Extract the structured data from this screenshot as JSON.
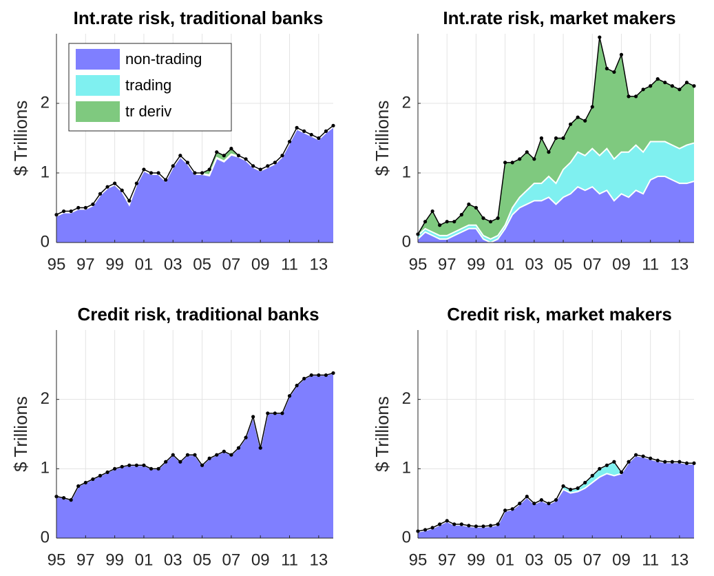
{
  "chart_data": [
    {
      "type": "area",
      "title": "Int.rate risk, traditional banks",
      "ylabel": "$ Trillions",
      "legend": "upper left",
      "grid": true,
      "xlim": [
        1995,
        2014
      ],
      "ylim": [
        0,
        3
      ],
      "yticks": [
        0,
        1,
        2
      ],
      "xticks": [
        {
          "value": 1995,
          "label": "95"
        },
        {
          "value": 1997,
          "label": "97"
        },
        {
          "value": 1999,
          "label": "99"
        },
        {
          "value": 2001,
          "label": "01"
        },
        {
          "value": 2003,
          "label": "03"
        },
        {
          "value": 2005,
          "label": "05"
        },
        {
          "value": 2007,
          "label": "07"
        },
        {
          "value": 2009,
          "label": "09"
        },
        {
          "value": 2011,
          "label": "11"
        },
        {
          "value": 2013,
          "label": "13"
        }
      ],
      "x": [
        1995,
        1995.5,
        1996,
        1996.5,
        1997,
        1997.5,
        1998,
        1998.5,
        1999,
        1999.5,
        2000,
        2000.5,
        2001,
        2001.5,
        2002,
        2002.5,
        2003,
        2003.5,
        2004,
        2004.5,
        2005,
        2005.5,
        2006,
        2006.5,
        2007,
        2007.5,
        2008,
        2008.5,
        2009,
        2009.5,
        2010,
        2010.5,
        2011,
        2011.5,
        2012,
        2012.5,
        2013,
        2013.5,
        2014
      ],
      "series": [
        {
          "name": "non-trading",
          "color": "#7f7fff",
          "values": [
            0.38,
            0.43,
            0.43,
            0.48,
            0.48,
            0.53,
            0.68,
            0.78,
            0.83,
            0.73,
            0.54,
            0.83,
            1.03,
            0.98,
            0.98,
            0.88,
            1.08,
            1.23,
            1.13,
            0.98,
            0.98,
            0.96,
            1.21,
            1.16,
            1.26,
            1.23,
            1.18,
            1.08,
            1.03,
            1.08,
            1.13,
            1.23,
            1.43,
            1.63,
            1.58,
            1.53,
            1.48,
            1.58,
            1.66
          ]
        },
        {
          "name": "trading",
          "color": "#7ff0f0",
          "values": [
            0.01,
            0.01,
            0.01,
            0.01,
            0.01,
            0.01,
            0.01,
            0.01,
            0.01,
            0.01,
            0.01,
            0.01,
            0.01,
            0.01,
            0.01,
            0.01,
            0.01,
            0.01,
            0.01,
            0.01,
            0.01,
            0.01,
            0.01,
            0.01,
            0.01,
            0.01,
            0.01,
            0.01,
            0.01,
            0.01,
            0.01,
            0.01,
            0.01,
            0.01,
            0.01,
            0.01,
            0.01,
            0.01,
            0.01
          ]
        },
        {
          "name": "tr deriv",
          "color": "#7fc97f",
          "values": [
            0.01,
            0.01,
            0.01,
            0.01,
            0.01,
            0.01,
            0.01,
            0.01,
            0.01,
            0.01,
            0.05,
            0.01,
            0.01,
            0.01,
            0.01,
            0.01,
            0.01,
            0.01,
            0.01,
            0.01,
            0.01,
            0.08,
            0.08,
            0.08,
            0.08,
            0.01,
            0.01,
            0.01,
            0.01,
            0.01,
            0.01,
            0.01,
            0.01,
            0.01,
            0.01,
            0.01,
            0.01,
            0.01,
            0.01
          ]
        }
      ]
    },
    {
      "type": "area",
      "title": "Int.rate risk, market makers",
      "ylabel": "$ Trillions",
      "grid": true,
      "xlim": [
        1995,
        2014
      ],
      "ylim": [
        0,
        3
      ],
      "yticks": [
        0,
        1,
        2
      ],
      "xticks": [
        {
          "value": 1995,
          "label": "95"
        },
        {
          "value": 1997,
          "label": "97"
        },
        {
          "value": 1999,
          "label": "99"
        },
        {
          "value": 2001,
          "label": "01"
        },
        {
          "value": 2003,
          "label": "03"
        },
        {
          "value": 2005,
          "label": "05"
        },
        {
          "value": 2007,
          "label": "07"
        },
        {
          "value": 2009,
          "label": "09"
        },
        {
          "value": 2011,
          "label": "11"
        },
        {
          "value": 2013,
          "label": "13"
        }
      ],
      "x": [
        1995,
        1995.5,
        1996,
        1996.5,
        1997,
        1997.5,
        1998,
        1998.5,
        1999,
        1999.5,
        2000,
        2000.5,
        2001,
        2001.5,
        2002,
        2002.5,
        2003,
        2003.5,
        2004,
        2004.5,
        2005,
        2005.5,
        2006,
        2006.5,
        2007,
        2007.5,
        2008,
        2008.5,
        2009,
        2009.5,
        2010,
        2010.5,
        2011,
        2011.5,
        2012,
        2012.5,
        2013,
        2013.5,
        2014
      ],
      "series": [
        {
          "name": "non-trading",
          "color": "#7f7fff",
          "values": [
            0.05,
            0.15,
            0.1,
            0.05,
            0.05,
            0.1,
            0.15,
            0.2,
            0.2,
            0.05,
            0.0,
            0.05,
            0.2,
            0.4,
            0.5,
            0.55,
            0.6,
            0.6,
            0.65,
            0.55,
            0.65,
            0.7,
            0.8,
            0.75,
            0.8,
            0.7,
            0.75,
            0.6,
            0.7,
            0.65,
            0.75,
            0.7,
            0.9,
            0.95,
            0.95,
            0.9,
            0.85,
            0.85,
            0.88
          ]
        },
        {
          "name": "trading",
          "color": "#7ff0f0",
          "values": [
            0.05,
            0.05,
            0.05,
            0.05,
            0.05,
            0.05,
            0.05,
            0.05,
            0.05,
            0.05,
            0.05,
            0.05,
            0.05,
            0.1,
            0.15,
            0.2,
            0.25,
            0.25,
            0.3,
            0.3,
            0.4,
            0.45,
            0.5,
            0.5,
            0.55,
            0.55,
            0.6,
            0.6,
            0.6,
            0.65,
            0.65,
            0.6,
            0.55,
            0.5,
            0.5,
            0.5,
            0.5,
            0.55,
            0.55
          ]
        },
        {
          "name": "tr deriv",
          "color": "#7fc97f",
          "values": [
            0.02,
            0.1,
            0.3,
            0.15,
            0.2,
            0.15,
            0.2,
            0.3,
            0.25,
            0.25,
            0.25,
            0.25,
            0.9,
            0.65,
            0.55,
            0.55,
            0.35,
            0.65,
            0.35,
            0.65,
            0.45,
            0.55,
            0.5,
            0.5,
            0.6,
            1.7,
            1.15,
            1.25,
            1.4,
            0.8,
            0.7,
            0.9,
            0.8,
            0.9,
            0.85,
            0.85,
            0.85,
            0.9,
            0.82
          ]
        }
      ]
    },
    {
      "type": "area",
      "title": "Credit risk, traditional banks",
      "ylabel": "$ Trillions",
      "grid": true,
      "xlim": [
        1995,
        2014
      ],
      "ylim": [
        0,
        3
      ],
      "yticks": [
        0,
        1,
        2
      ],
      "xticks": [
        {
          "value": 1995,
          "label": "95"
        },
        {
          "value": 1997,
          "label": "97"
        },
        {
          "value": 1999,
          "label": "99"
        },
        {
          "value": 2001,
          "label": "01"
        },
        {
          "value": 2003,
          "label": "03"
        },
        {
          "value": 2005,
          "label": "05"
        },
        {
          "value": 2007,
          "label": "07"
        },
        {
          "value": 2009,
          "label": "09"
        },
        {
          "value": 2011,
          "label": "11"
        },
        {
          "value": 2013,
          "label": "13"
        }
      ],
      "x": [
        1995,
        1995.5,
        1996,
        1996.5,
        1997,
        1997.5,
        1998,
        1998.5,
        1999,
        1999.5,
        2000,
        2000.5,
        2001,
        2001.5,
        2002,
        2002.5,
        2003,
        2003.5,
        2004,
        2004.5,
        2005,
        2005.5,
        2006,
        2006.5,
        2007,
        2007.5,
        2008,
        2008.5,
        2009,
        2009.5,
        2010,
        2010.5,
        2011,
        2011.5,
        2012,
        2012.5,
        2013,
        2013.5,
        2014
      ],
      "series": [
        {
          "name": "non-trading",
          "color": "#7f7fff",
          "values": [
            0.6,
            0.58,
            0.55,
            0.75,
            0.8,
            0.85,
            0.9,
            0.95,
            1.0,
            1.03,
            1.05,
            1.05,
            1.05,
            1.0,
            1.0,
            1.1,
            1.2,
            1.1,
            1.2,
            1.2,
            1.05,
            1.15,
            1.2,
            1.25,
            1.2,
            1.3,
            1.45,
            1.75,
            1.3,
            1.8,
            1.8,
            1.8,
            2.05,
            2.2,
            2.3,
            2.35,
            2.35,
            2.35,
            2.38
          ]
        },
        {
          "name": "trading",
          "color": "#7ff0f0",
          "values": [
            0,
            0,
            0,
            0,
            0,
            0,
            0,
            0,
            0,
            0,
            0,
            0,
            0,
            0,
            0,
            0,
            0,
            0,
            0,
            0,
            0,
            0,
            0,
            0,
            0,
            0,
            0,
            0,
            0,
            0,
            0,
            0,
            0,
            0,
            0,
            0,
            0,
            0,
            0
          ]
        },
        {
          "name": "tr deriv",
          "color": "#7fc97f",
          "values": [
            0,
            0,
            0,
            0,
            0,
            0,
            0,
            0,
            0,
            0,
            0,
            0,
            0,
            0,
            0,
            0,
            0,
            0,
            0,
            0,
            0,
            0,
            0,
            0,
            0,
            0,
            0,
            0,
            0,
            0,
            0,
            0,
            0,
            0,
            0,
            0,
            0,
            0,
            0
          ]
        }
      ]
    },
    {
      "type": "area",
      "title": "Credit risk, market makers",
      "ylabel": "$ Trillions",
      "grid": true,
      "xlim": [
        1995,
        2014
      ],
      "ylim": [
        0,
        3
      ],
      "yticks": [
        0,
        1,
        2
      ],
      "xticks": [
        {
          "value": 1995,
          "label": "95"
        },
        {
          "value": 1997,
          "label": "97"
        },
        {
          "value": 1999,
          "label": "99"
        },
        {
          "value": 2001,
          "label": "01"
        },
        {
          "value": 2003,
          "label": "03"
        },
        {
          "value": 2005,
          "label": "05"
        },
        {
          "value": 2007,
          "label": "07"
        },
        {
          "value": 2009,
          "label": "09"
        },
        {
          "value": 2011,
          "label": "11"
        },
        {
          "value": 2013,
          "label": "13"
        }
      ],
      "x": [
        1995,
        1995.5,
        1996,
        1996.5,
        1997,
        1997.5,
        1998,
        1998.5,
        1999,
        1999.5,
        2000,
        2000.5,
        2001,
        2001.5,
        2002,
        2002.5,
        2003,
        2003.5,
        2004,
        2004.5,
        2005,
        2005.5,
        2006,
        2006.5,
        2007,
        2007.5,
        2008,
        2008.5,
        2009,
        2009.5,
        2010,
        2010.5,
        2011,
        2011.5,
        2012,
        2012.5,
        2013,
        2013.5,
        2014
      ],
      "series": [
        {
          "name": "non-trading",
          "color": "#7f7fff",
          "values": [
            0.09,
            0.11,
            0.14,
            0.19,
            0.24,
            0.19,
            0.19,
            0.17,
            0.16,
            0.16,
            0.17,
            0.19,
            0.39,
            0.41,
            0.49,
            0.59,
            0.49,
            0.54,
            0.49,
            0.54,
            0.7,
            0.65,
            0.67,
            0.72,
            0.8,
            0.88,
            0.93,
            0.9,
            0.93,
            1.09,
            1.19,
            1.17,
            1.14,
            1.11,
            1.09,
            1.09,
            1.09,
            1.07,
            1.07
          ]
        },
        {
          "name": "trading",
          "color": "#7ff0f0",
          "values": [
            0.01,
            0.01,
            0.01,
            0.01,
            0.01,
            0.01,
            0.01,
            0.01,
            0.01,
            0.01,
            0.01,
            0.01,
            0.01,
            0.01,
            0.01,
            0.01,
            0.01,
            0.01,
            0.01,
            0.01,
            0.05,
            0.05,
            0.05,
            0.08,
            0.1,
            0.12,
            0.12,
            0.2,
            0.02,
            0.01,
            0.01,
            0.01,
            0.01,
            0.01,
            0.01,
            0.01,
            0.01,
            0.01,
            0.01
          ]
        },
        {
          "name": "tr deriv",
          "color": "#7fc97f",
          "values": [
            0,
            0,
            0,
            0,
            0,
            0,
            0,
            0,
            0,
            0,
            0,
            0,
            0,
            0,
            0,
            0,
            0,
            0,
            0,
            0,
            0,
            0,
            0,
            0,
            0,
            0,
            0,
            0,
            0,
            0,
            0,
            0,
            0,
            0,
            0,
            0,
            0,
            0,
            0
          ]
        }
      ]
    }
  ]
}
